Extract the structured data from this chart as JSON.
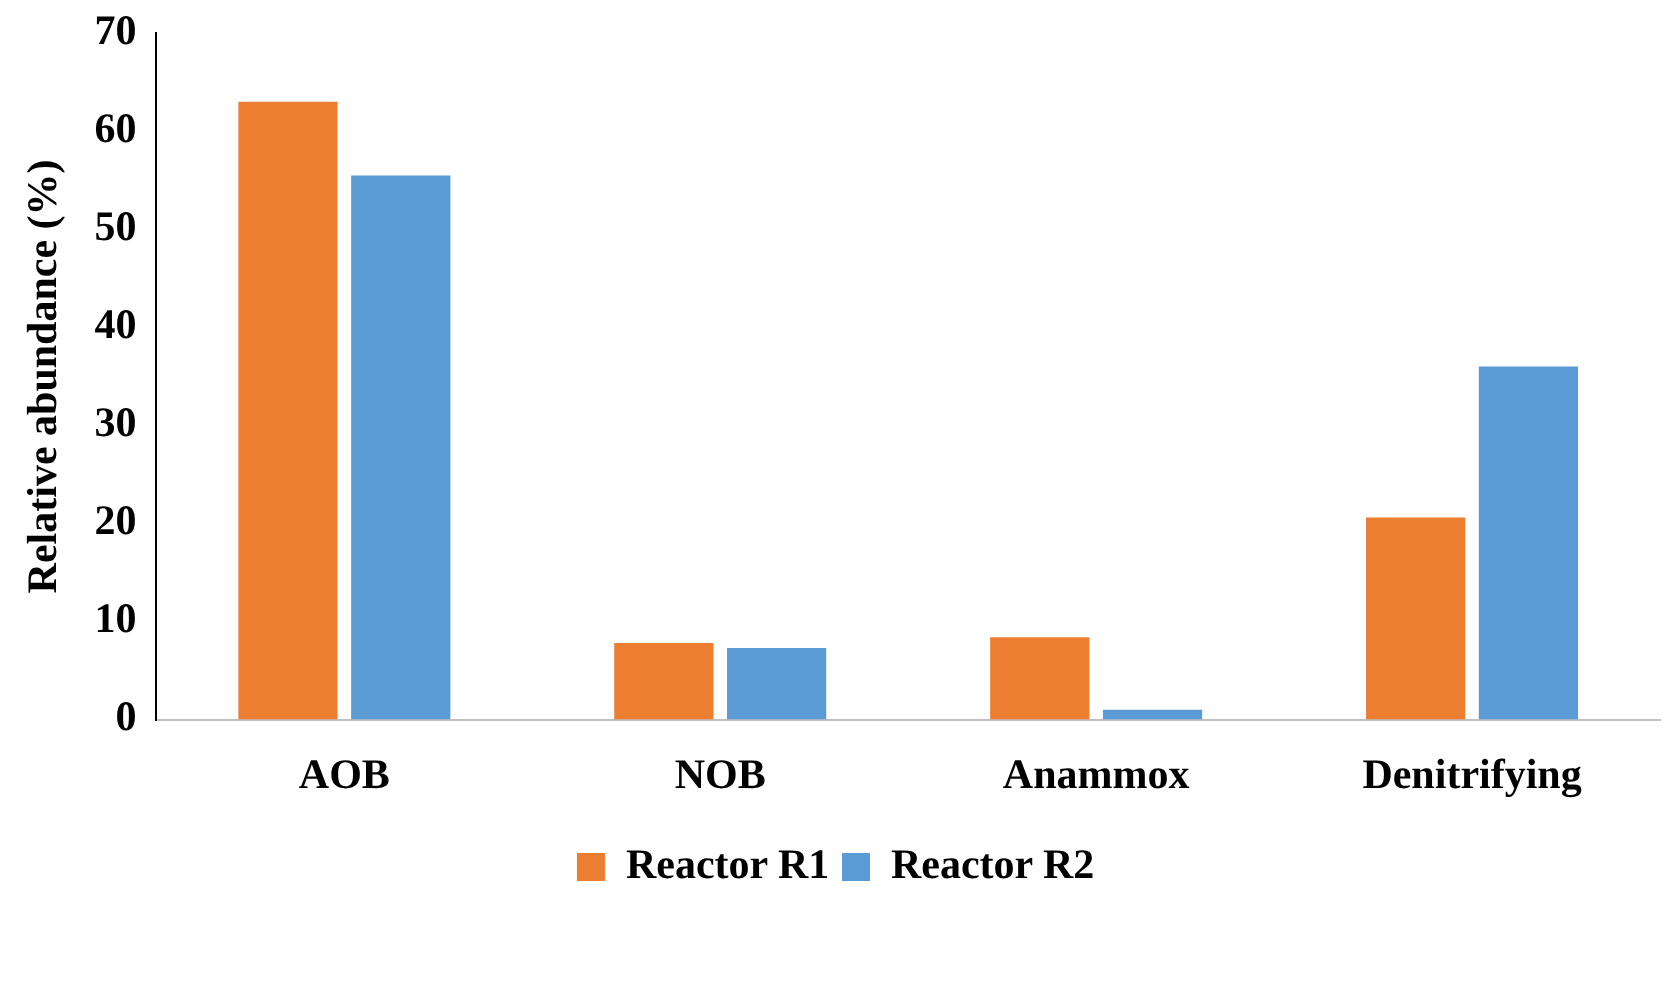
{
  "chart_data": {
    "type": "bar",
    "ylabel": "Relative abundance (%)",
    "categories": [
      "AOB",
      "NOB",
      "Anammox",
      "Denitrifying"
    ],
    "series": [
      {
        "name": "Reactor R1",
        "color": "#ed7d31",
        "values": [
          63,
          7.8,
          8.4,
          20.6
        ]
      },
      {
        "name": "Reactor R2",
        "color": "#5b9bd5",
        "values": [
          55.5,
          7.3,
          1,
          36
        ]
      }
    ],
    "ylim": [
      0,
      70
    ],
    "yticks": [
      0,
      10,
      20,
      30,
      40,
      50,
      60,
      70
    ],
    "grid": false,
    "legend": "bottom"
  }
}
